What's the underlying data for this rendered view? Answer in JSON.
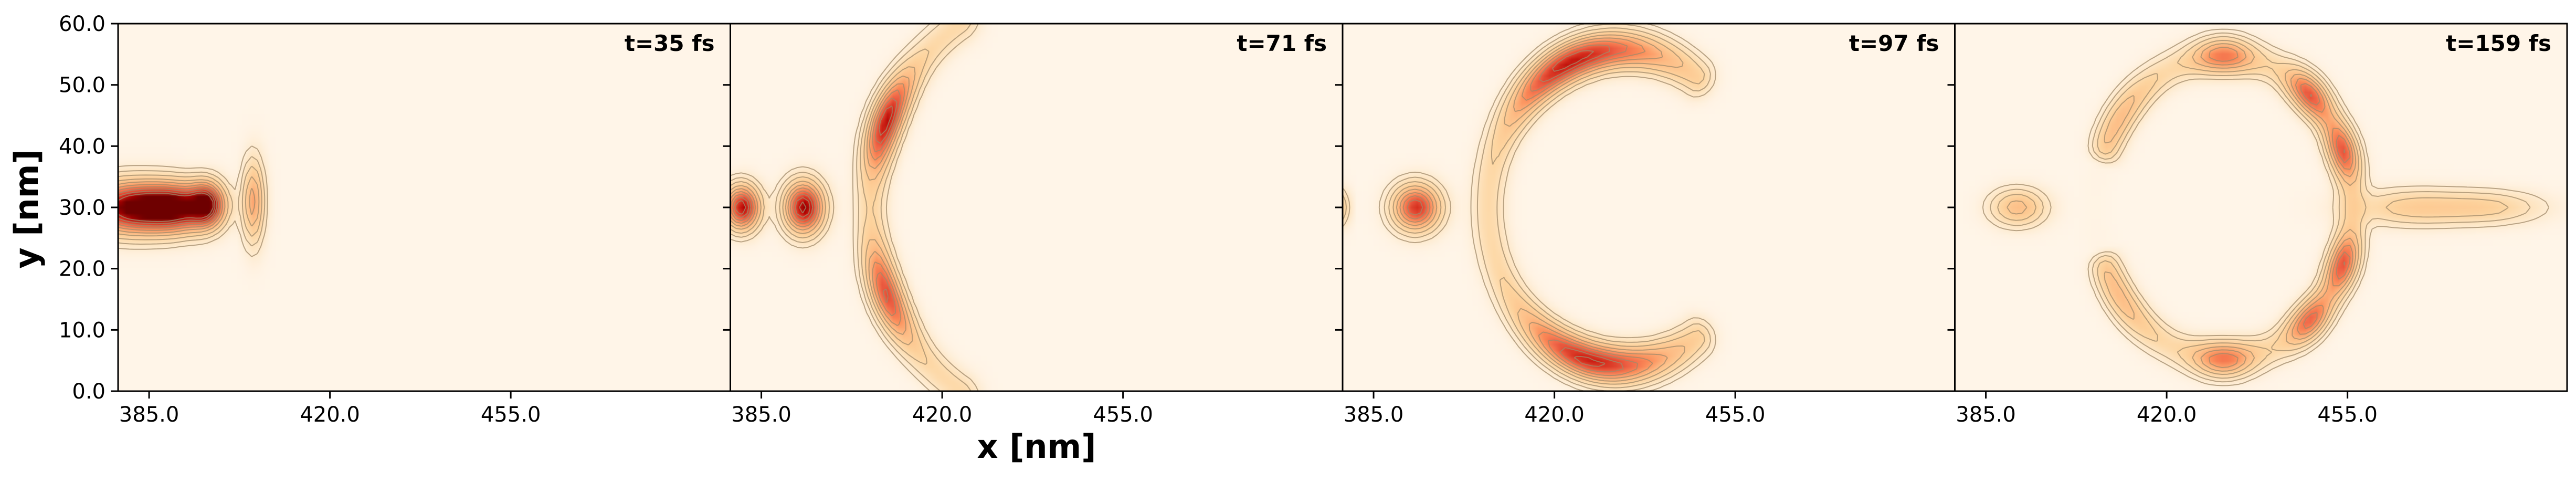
{
  "chart_data": {
    "type": "heatmap",
    "xlabel": "x [nm]",
    "ylabel": "y [nm]",
    "xlim": [
      379,
      497.5
    ],
    "ylim": [
      0,
      60
    ],
    "xticks": [
      "385.0",
      "420.0",
      "455.0"
    ],
    "yticks": [
      "0.0",
      "10.0",
      "20.0",
      "30.0",
      "40.0",
      "50.0",
      "60.0"
    ],
    "colormap": "OrRd",
    "colors": {
      "background": "#fff5e8",
      "low": "#fdd49e",
      "mid": "#ef6548",
      "high": "#7f0000",
      "contour": "#a08a6a"
    },
    "panels": [
      {
        "label": "t=35 fs",
        "blobs": [
          {
            "x": 381,
            "y": 30,
            "sx": 5.5,
            "sy": 2.8,
            "a": 1.0
          },
          {
            "x": 390,
            "y": 30,
            "sx": 4.5,
            "sy": 2.6,
            "a": 0.95
          },
          {
            "x": 396,
            "y": 30.5,
            "sx": 2.2,
            "sy": 2.4,
            "a": 0.8
          },
          {
            "x": 405,
            "y": 31,
            "sx": 1.4,
            "sy": 4.5,
            "a": 0.45
          }
        ],
        "arcs": []
      },
      {
        "label": "t=71 fs",
        "blobs": [
          {
            "x": 381,
            "y": 30,
            "sx": 2.2,
            "sy": 2.4,
            "a": 0.9
          },
          {
            "x": 393,
            "y": 30,
            "sx": 2.5,
            "sy": 2.8,
            "a": 0.95
          }
        ],
        "arcs": [
          {
            "cx": 441,
            "cy": 30,
            "r": 35,
            "w": 2.0,
            "a0": 120,
            "a1": 240,
            "peaks": [
              {
                "ang": 156,
                "s": 9,
                "a": 0.7
              },
              {
                "ang": 204,
                "s": 9,
                "a": 0.55
              }
            ],
            "base": 0.18
          }
        ]
      },
      {
        "label": "t=97 fs",
        "blobs": [
          {
            "x": 393,
            "y": 30,
            "sx": 3.0,
            "sy": 2.5,
            "a": 0.8
          },
          {
            "x": 379,
            "y": 30,
            "sx": 0.8,
            "sy": 2.0,
            "a": 0.2
          }
        ],
        "arcs": [
          {
            "cx": 433,
            "cy": 30,
            "r": 26,
            "w": 2.1,
            "a0": 55,
            "a1": 305,
            "peaks": [
              {
                "ang": 118,
                "s": 18,
                "a": 0.55
              },
              {
                "ang": 250,
                "s": 18,
                "a": 0.45
              },
              {
                "ang": 90,
                "s": 20,
                "a": 0.3
              },
              {
                "ang": 270,
                "s": 20,
                "a": 0.3
              }
            ],
            "base": 0.18
          }
        ]
      },
      {
        "label": "t=159 fs",
        "blobs": [
          {
            "x": 391,
            "y": 30,
            "sx": 3.5,
            "sy": 2.0,
            "a": 0.35
          },
          {
            "x": 468,
            "y": 30,
            "sx": 8,
            "sy": 2.0,
            "a": 0.25
          },
          {
            "x": 483,
            "y": 30,
            "sx": 7,
            "sy": 1.8,
            "a": 0.2
          }
        ],
        "arcs": [
          {
            "cx": 431,
            "cy": 30,
            "r": 25,
            "w": 1.9,
            "a0": 0,
            "a1": 360,
            "peaks": [
              {
                "ang": 90,
                "s": 9,
                "a": 0.45
              },
              {
                "ang": 48,
                "s": 8,
                "a": 0.55
              },
              {
                "ang": 22,
                "s": 8,
                "a": 0.55
              },
              {
                "ang": 338,
                "s": 8,
                "a": 0.55
              },
              {
                "ang": 312,
                "s": 8,
                "a": 0.5
              },
              {
                "ang": 270,
                "s": 9,
                "a": 0.45
              },
              {
                "ang": 145,
                "s": 14,
                "a": 0.2
              },
              {
                "ang": 215,
                "s": 14,
                "a": 0.2
              }
            ],
            "base": 0.16,
            "gapFrom": 165,
            "gapTo": 195
          }
        ]
      }
    ]
  }
}
